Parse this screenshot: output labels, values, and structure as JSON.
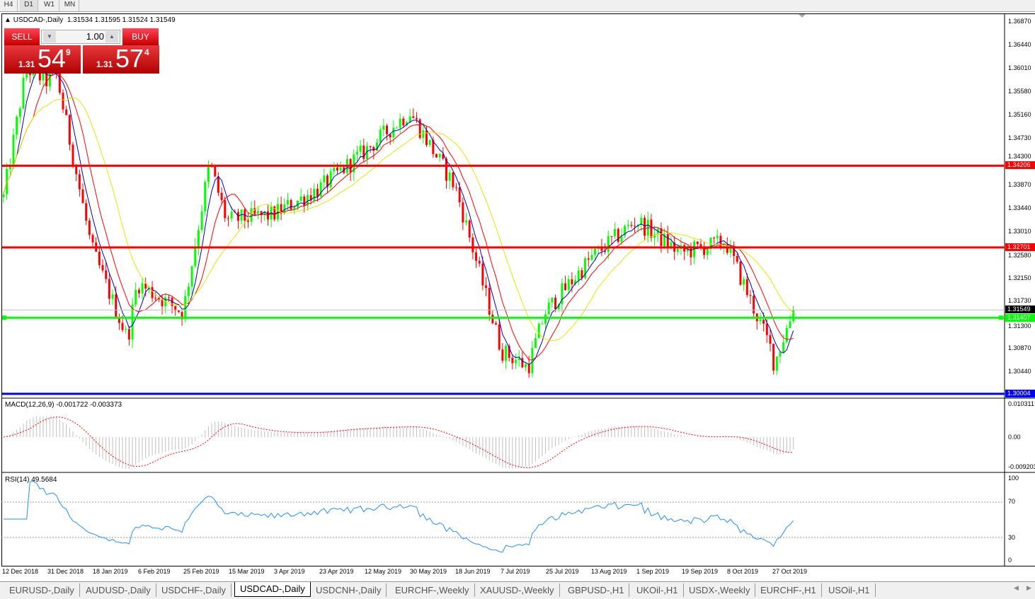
{
  "period_tabs": [
    {
      "label": "H4"
    },
    {
      "label": "D1",
      "selected": true
    },
    {
      "label": "W1"
    },
    {
      "label": "MN"
    }
  ],
  "chart": {
    "symbol_title": "USDCAD-,Daily",
    "ohlc": "1.31534 1.31595 1.31524 1.31549",
    "colors": {
      "bull": "#00ff00",
      "bear": "#ff0000",
      "ma_fast": "#0000c0",
      "ma_mid": "#ff0000",
      "ma_slow": "#ffff00",
      "rsi": "#1e90ff"
    }
  },
  "trade_panel": {
    "sell_label": "SELL",
    "buy_label": "BUY",
    "lots": "1.00",
    "sell_price": {
      "prefix": "1.31",
      "big": "54",
      "sup": "9"
    },
    "buy_price": {
      "prefix": "1.31",
      "big": "57",
      "sup": "4"
    }
  },
  "price_axis": [
    "1.36870",
    "1.36440",
    "1.36010",
    "1.35580",
    "1.35160",
    "1.34730",
    "1.34300",
    "1.33870",
    "1.33440",
    "1.33010",
    "1.32580",
    "1.32150",
    "1.31730",
    "1.31300",
    "1.30870",
    "1.30440"
  ],
  "price_marks": [
    {
      "label": "1.34206",
      "price": 1.34206,
      "color": "#ff0000"
    },
    {
      "label": "1.32701",
      "price": 1.32701,
      "color": "#ff0000"
    },
    {
      "label": "1.31407",
      "price": 1.31407,
      "color": "#00ff00"
    },
    {
      "label": "1.30004",
      "price": 1.30004,
      "color": "#0000ff"
    },
    {
      "label": "1.31549",
      "price": 1.31549,
      "color": "#000000"
    }
  ],
  "macd": {
    "label": "MACD(12,26,9) -0.001722 -0.003373",
    "axis": [
      "0.010311",
      "0.00",
      "-0.009203"
    ]
  },
  "rsi": {
    "label": "RSI(14) 49.5684",
    "axis": [
      "100",
      "70",
      "30",
      "0"
    ]
  },
  "time_axis": [
    "12 Dec 2018",
    "31 Dec 2018",
    "18 Jan 2019",
    "6 Feb 2019",
    "25 Feb 2019",
    "15 Mar 2019",
    "3 Apr 2019",
    "23 Apr 2019",
    "12 May 2019",
    "30 May 2019",
    "18 Jun 2019",
    "7 Jul 2019",
    "25 Jul 2019",
    "13 Aug 2019",
    "1 Sep 2019",
    "19 Sep 2019",
    "8 Oct 2019",
    "27 Oct 2019"
  ],
  "chart_data": {
    "type": "candlestick",
    "approx_closes": [
      {
        "date": "2018-12-12",
        "close": 1.3348
      },
      {
        "date": "2018-12-22",
        "close": 1.36
      },
      {
        "date": "2018-12-31",
        "close": 1.3575
      },
      {
        "date": "2019-01-03",
        "close": 1.36
      },
      {
        "date": "2019-01-18",
        "close": 1.327
      },
      {
        "date": "2019-02-02",
        "close": 1.3101
      },
      {
        "date": "2019-02-06",
        "close": 1.3205
      },
      {
        "date": "2019-02-25",
        "close": 1.315
      },
      {
        "date": "2019-03-08",
        "close": 1.3426
      },
      {
        "date": "2019-03-15",
        "close": 1.332
      },
      {
        "date": "2019-04-03",
        "close": 1.333
      },
      {
        "date": "2019-04-23",
        "close": 1.338
      },
      {
        "date": "2019-05-12",
        "close": 1.345
      },
      {
        "date": "2019-05-30",
        "close": 1.352
      },
      {
        "date": "2019-06-18",
        "close": 1.338
      },
      {
        "date": "2019-07-07",
        "close": 1.308
      },
      {
        "date": "2019-07-18",
        "close": 1.3049
      },
      {
        "date": "2019-07-25",
        "close": 1.315
      },
      {
        "date": "2019-08-13",
        "close": 1.325
      },
      {
        "date": "2019-09-01",
        "close": 1.332
      },
      {
        "date": "2019-09-19",
        "close": 1.326
      },
      {
        "date": "2019-10-08",
        "close": 1.328
      },
      {
        "date": "2019-10-27",
        "close": 1.308
      },
      {
        "date": "2019-10-28",
        "close": 1.3055
      },
      {
        "date": "2019-11-05",
        "close": 1.31549
      }
    ],
    "ylim": [
      1.3,
      1.37
    ]
  },
  "symbol_tabs": [
    {
      "label": "EURUSD-,Daily"
    },
    {
      "label": "AUDUSD-,Daily"
    },
    {
      "label": "USDCHF-,Daily"
    },
    {
      "label": "USDCAD-,Daily",
      "selected": true
    },
    {
      "label": "USDCNH-,Daily"
    },
    {
      "label": "EURCHF-,Weekly"
    },
    {
      "label": "XAUUSD-,Weekly"
    },
    {
      "label": "GBPUSD-,H1"
    },
    {
      "label": "UKOil-,H1"
    },
    {
      "label": "USDX-,Weekly"
    },
    {
      "label": "EURCHF-,H1"
    },
    {
      "label": "USOil-,H1"
    }
  ]
}
